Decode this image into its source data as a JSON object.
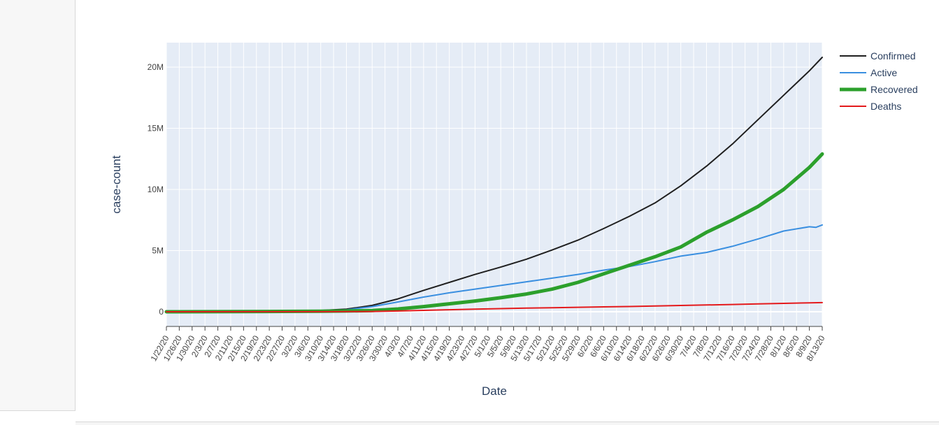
{
  "chart_data": {
    "type": "line",
    "title": "",
    "xlabel": "Date",
    "ylabel": "case-count",
    "x_range": [
      "1/22/20",
      "8/13/20"
    ],
    "ylim": [
      -1200000,
      22000000
    ],
    "y_ticks": [
      {
        "value": 0,
        "label": "0"
      },
      {
        "value": 5000000,
        "label": "5M"
      },
      {
        "value": 10000000,
        "label": "10M"
      },
      {
        "value": 15000000,
        "label": "15M"
      },
      {
        "value": 20000000,
        "label": "20M"
      }
    ],
    "x_tick_labels": [
      "1/22/20",
      "1/26/20",
      "1/30/20",
      "2/3/20",
      "2/7/20",
      "2/11/20",
      "2/15/20",
      "2/19/20",
      "2/23/20",
      "2/27/20",
      "3/2/20",
      "3/6/20",
      "3/10/20",
      "3/14/20",
      "3/18/20",
      "3/22/20",
      "3/26/20",
      "3/30/20",
      "4/3/20",
      "4/7/20",
      "4/11/20",
      "4/15/20",
      "4/19/20",
      "4/23/20",
      "4/27/20",
      "5/1/20",
      "5/5/20",
      "5/9/20",
      "5/13/20",
      "5/17/20",
      "5/21/20",
      "5/25/20",
      "5/29/20",
      "6/2/20",
      "6/6/20",
      "6/10/20",
      "6/14/20",
      "6/18/20",
      "6/22/20",
      "6/26/20",
      "6/30/20",
      "7/4/20",
      "7/8/20",
      "7/12/20",
      "7/16/20",
      "7/20/20",
      "7/24/20",
      "7/28/20",
      "8/1/20",
      "8/5/20",
      "8/9/20",
      "8/13/20"
    ],
    "grid": true,
    "legend_position": "top-right",
    "series": [
      {
        "name": "Confirmed",
        "color": "#1f1f1f",
        "width": 2,
        "points": [
          [
            "1/22/20",
            0
          ],
          [
            "2/27/20",
            80000
          ],
          [
            "3/10/20",
            110000
          ],
          [
            "3/18/20",
            210000
          ],
          [
            "3/26/20",
            520000
          ],
          [
            "4/3/20",
            1050000
          ],
          [
            "4/11/20",
            1750000
          ],
          [
            "4/19/20",
            2400000
          ],
          [
            "4/27/20",
            3050000
          ],
          [
            "5/5/20",
            3650000
          ],
          [
            "5/13/20",
            4300000
          ],
          [
            "5/21/20",
            5050000
          ],
          [
            "5/29/20",
            5850000
          ],
          [
            "6/6/20",
            6800000
          ],
          [
            "6/14/20",
            7800000
          ],
          [
            "6/22/20",
            8900000
          ],
          [
            "6/30/20",
            10300000
          ],
          [
            "7/8/20",
            11900000
          ],
          [
            "7/16/20",
            13700000
          ],
          [
            "7/24/20",
            15700000
          ],
          [
            "8/1/20",
            17700000
          ],
          [
            "8/9/20",
            19700000
          ],
          [
            "8/13/20",
            20800000
          ]
        ]
      },
      {
        "name": "Active",
        "color": "#3a8fe0",
        "width": 2,
        "points": [
          [
            "1/22/20",
            0
          ],
          [
            "2/27/20",
            40000
          ],
          [
            "3/10/20",
            55000
          ],
          [
            "3/18/20",
            160000
          ],
          [
            "3/26/20",
            420000
          ],
          [
            "4/3/20",
            800000
          ],
          [
            "4/11/20",
            1200000
          ],
          [
            "4/19/20",
            1550000
          ],
          [
            "4/27/20",
            1850000
          ],
          [
            "5/5/20",
            2150000
          ],
          [
            "5/13/20",
            2450000
          ],
          [
            "5/21/20",
            2750000
          ],
          [
            "5/29/20",
            3050000
          ],
          [
            "6/6/20",
            3400000
          ],
          [
            "6/14/20",
            3700000
          ],
          [
            "6/22/20",
            4100000
          ],
          [
            "6/30/20",
            4550000
          ],
          [
            "7/4/20",
            4700000
          ],
          [
            "7/8/20",
            4850000
          ],
          [
            "7/16/20",
            5350000
          ],
          [
            "7/24/20",
            5950000
          ],
          [
            "8/1/20",
            6600000
          ],
          [
            "8/9/20",
            6950000
          ],
          [
            "8/11/20",
            6900000
          ],
          [
            "8/13/20",
            7100000
          ]
        ]
      },
      {
        "name": "Recovered",
        "color": "#2ca02c",
        "width": 5,
        "points": [
          [
            "1/22/20",
            0
          ],
          [
            "2/27/20",
            30000
          ],
          [
            "3/10/20",
            45000
          ],
          [
            "3/18/20",
            60000
          ],
          [
            "3/26/20",
            100000
          ],
          [
            "4/3/20",
            230000
          ],
          [
            "4/11/20",
            420000
          ],
          [
            "4/19/20",
            650000
          ],
          [
            "4/27/20",
            880000
          ],
          [
            "5/5/20",
            1150000
          ],
          [
            "5/13/20",
            1450000
          ],
          [
            "5/21/20",
            1850000
          ],
          [
            "5/29/20",
            2400000
          ],
          [
            "6/6/20",
            3100000
          ],
          [
            "6/14/20",
            3800000
          ],
          [
            "6/22/20",
            4500000
          ],
          [
            "6/30/20",
            5300000
          ],
          [
            "7/4/20",
            5900000
          ],
          [
            "7/8/20",
            6500000
          ],
          [
            "7/16/20",
            7500000
          ],
          [
            "7/24/20",
            8600000
          ],
          [
            "8/1/20",
            10000000
          ],
          [
            "8/9/20",
            11800000
          ],
          [
            "8/13/20",
            12900000
          ]
        ]
      },
      {
        "name": "Deaths",
        "color": "#e41a1c",
        "width": 2,
        "points": [
          [
            "1/22/20",
            0
          ],
          [
            "3/10/20",
            4000
          ],
          [
            "3/18/20",
            9000
          ],
          [
            "3/26/20",
            25000
          ],
          [
            "4/3/20",
            60000
          ],
          [
            "4/11/20",
            115000
          ],
          [
            "4/19/20",
            165000
          ],
          [
            "4/27/20",
            210000
          ],
          [
            "5/5/20",
            255000
          ],
          [
            "5/13/20",
            295000
          ],
          [
            "5/21/20",
            330000
          ],
          [
            "5/29/20",
            365000
          ],
          [
            "6/6/20",
            400000
          ],
          [
            "6/14/20",
            430000
          ],
          [
            "6/22/20",
            470000
          ],
          [
            "6/30/20",
            515000
          ],
          [
            "7/8/20",
            555000
          ],
          [
            "7/16/20",
            595000
          ],
          [
            "7/24/20",
            640000
          ],
          [
            "8/1/20",
            685000
          ],
          [
            "8/9/20",
            730000
          ],
          [
            "8/13/20",
            750000
          ]
        ]
      }
    ]
  }
}
